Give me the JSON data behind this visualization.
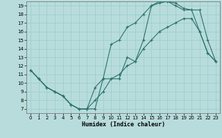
{
  "title": "",
  "xlabel": "Humidex (Indice chaleur)",
  "background_color": "#b8dcdc",
  "grid_color": "#9ecece",
  "line_color": "#2a7068",
  "xlim": [
    -0.5,
    23.5
  ],
  "ylim": [
    6.5,
    19.5
  ],
  "xticks": [
    0,
    1,
    2,
    3,
    4,
    5,
    6,
    7,
    8,
    9,
    10,
    11,
    12,
    13,
    14,
    15,
    16,
    17,
    18,
    19,
    20,
    21,
    22,
    23
  ],
  "yticks": [
    7,
    8,
    9,
    10,
    11,
    12,
    13,
    14,
    15,
    16,
    17,
    18,
    19
  ],
  "line1_zigzag": {
    "x": [
      0,
      1,
      2,
      3,
      4,
      5,
      6,
      7,
      8,
      9,
      10,
      11,
      12,
      13,
      14,
      15,
      16,
      17,
      18,
      19,
      20,
      21,
      22,
      23
    ],
    "y": [
      11.5,
      10.5,
      9.5,
      9.0,
      8.5,
      7.5,
      7.0,
      7.0,
      7.0,
      10.5,
      10.5,
      10.5,
      13.0,
      12.5,
      15.0,
      19.0,
      19.3,
      19.5,
      19.3,
      18.7,
      18.5,
      16.0,
      13.5,
      12.5
    ]
  },
  "line2_top": {
    "x": [
      0,
      1,
      2,
      3,
      4,
      5,
      6,
      7,
      8,
      9,
      10,
      11,
      12,
      13,
      14,
      15,
      16,
      17,
      18,
      19,
      20,
      21,
      22,
      23
    ],
    "y": [
      11.5,
      10.5,
      9.5,
      9.0,
      8.5,
      7.5,
      7.0,
      7.0,
      9.5,
      10.5,
      14.5,
      15.0,
      16.5,
      17.0,
      18.0,
      19.0,
      19.5,
      19.5,
      19.0,
      18.5,
      18.5,
      18.5,
      15.0,
      12.5
    ]
  },
  "line3_bottom": {
    "x": [
      0,
      1,
      2,
      3,
      4,
      5,
      6,
      7,
      8,
      9,
      10,
      11,
      12,
      13,
      14,
      15,
      16,
      17,
      18,
      19,
      20,
      21,
      22,
      23
    ],
    "y": [
      11.5,
      10.5,
      9.5,
      9.0,
      8.5,
      7.5,
      7.0,
      7.0,
      8.0,
      9.0,
      10.5,
      11.0,
      12.0,
      12.5,
      14.0,
      15.0,
      16.0,
      16.5,
      17.0,
      17.5,
      17.5,
      16.0,
      13.5,
      12.5
    ]
  }
}
